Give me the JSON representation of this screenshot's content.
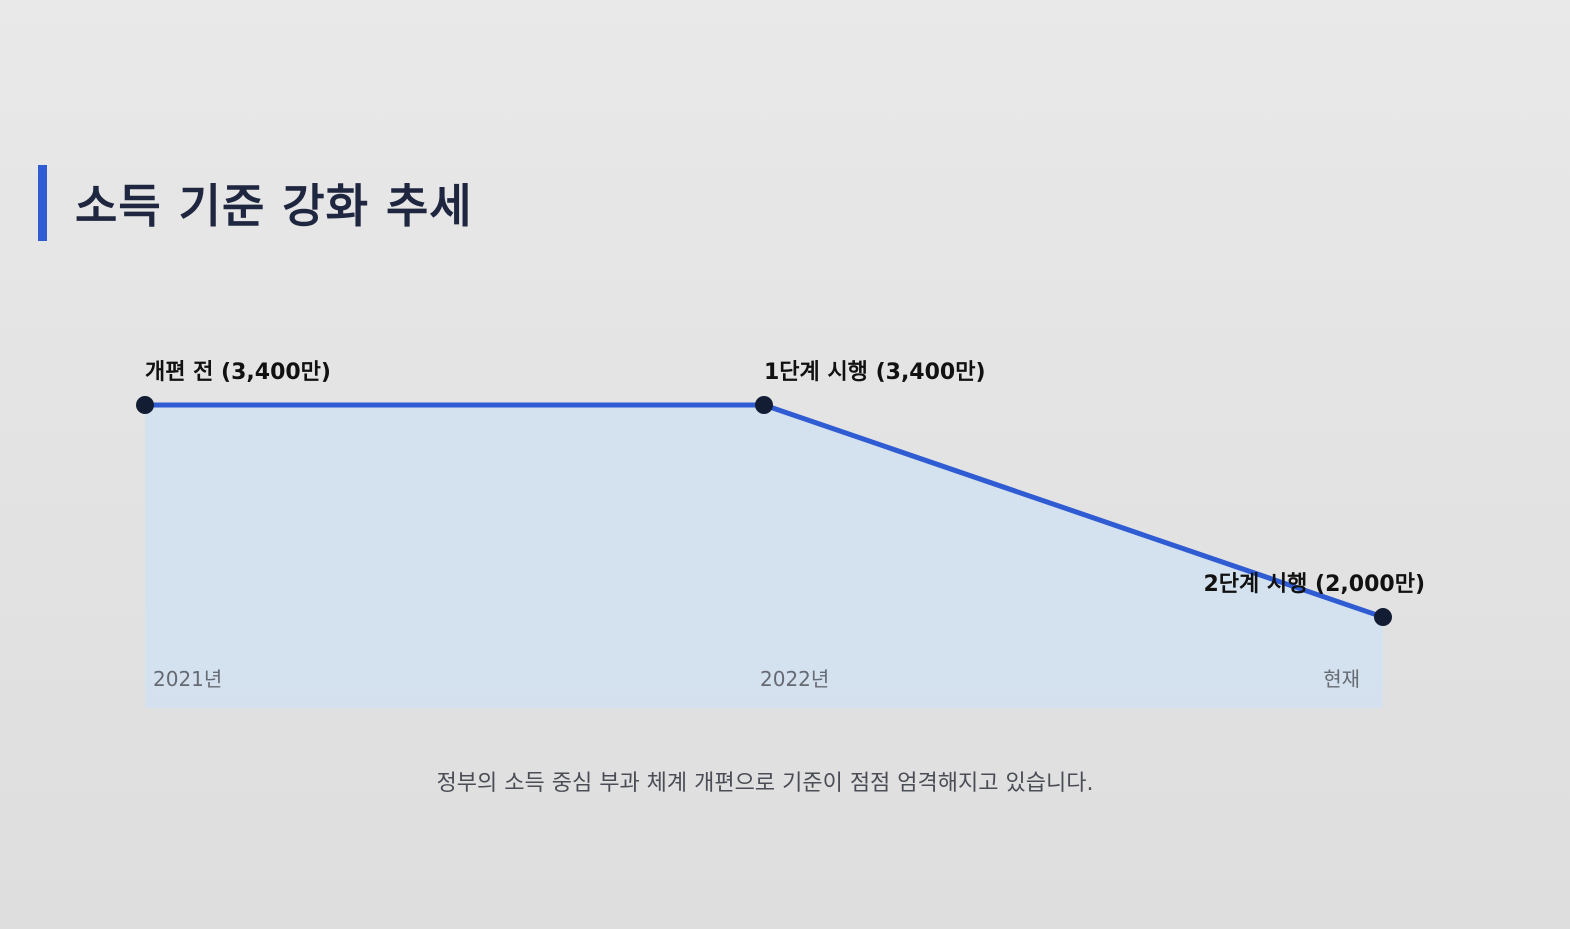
{
  "title": "소득 기준 강화 추세",
  "caption": "정부의 소득 중심 부과 체계 개편으로 기준이 점점 엄격해지고 있습니다.",
  "colors": {
    "line": "#2f5bd3",
    "point": "#121c33",
    "area": "#cfe0f2",
    "title": "#1f2740"
  },
  "chart_data": {
    "type": "area",
    "title": "소득 기준 강화 추세",
    "xlabel": "",
    "ylabel": "",
    "x": [
      "2021년",
      "2022년",
      "현재"
    ],
    "grid": false,
    "legend": "none",
    "series": [
      {
        "values": [
          3400,
          3400,
          2000
        ],
        "point_labels": [
          "개편 전 (3,400만)",
          "1단계 시행 (3,400만)",
          "2단계 시행 (2,000만)"
        ]
      }
    ]
  }
}
